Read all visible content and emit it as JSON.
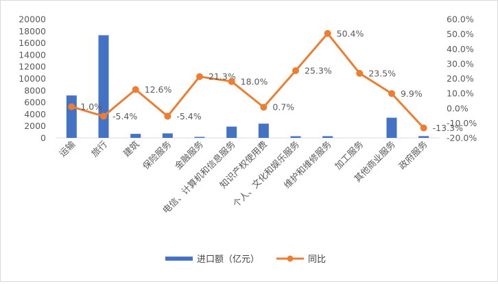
{
  "chart_data": {
    "type": "bar",
    "title": "",
    "categories": [
      "运输",
      "旅行",
      "建筑",
      "保险服务",
      "金融服务",
      "电信、计算机和信息服务",
      "知识产权使用费",
      "个人、文化和娱乐服务",
      "维护和维修服务",
      "加工服务",
      "其他商业服务",
      "政府服务"
    ],
    "series": [
      {
        "name": "进口额（亿元）",
        "type": "bar",
        "axis": "left",
        "color": "#4472c4",
        "values": [
          7150,
          17300,
          680,
          760,
          170,
          1900,
          2400,
          280,
          290,
          0,
          3400,
          300
        ]
      },
      {
        "name": "同比",
        "type": "line",
        "axis": "right",
        "color": "#ed7d31",
        "values": [
          1.0,
          -5.4,
          12.6,
          -5.4,
          21.3,
          18.0,
          0.7,
          25.3,
          50.4,
          23.5,
          9.9,
          -13.3
        ],
        "labels": [
          "1.0%",
          "-5.4%",
          "12.6%",
          "-5.4%",
          "21.3%",
          "18.0%",
          "0.7%",
          "25.3%",
          "50.4%",
          "23.5%",
          "9.9%",
          "-13.3%"
        ]
      }
    ],
    "y_left": {
      "range": [
        0,
        20000
      ],
      "ticks": [
        "0",
        "2000",
        "4000",
        "6000",
        "8000",
        "10000",
        "12000",
        "14000",
        "16000",
        "18000",
        "20000"
      ]
    },
    "y_right": {
      "range": [
        -20,
        60
      ],
      "ticks": [
        "-20.0%",
        "-10.0%",
        "0.0%",
        "10.0%",
        "20.0%",
        "30.0%",
        "40.0%",
        "50.0%",
        "60.0%"
      ]
    },
    "grid": false,
    "legend": "bottom"
  }
}
